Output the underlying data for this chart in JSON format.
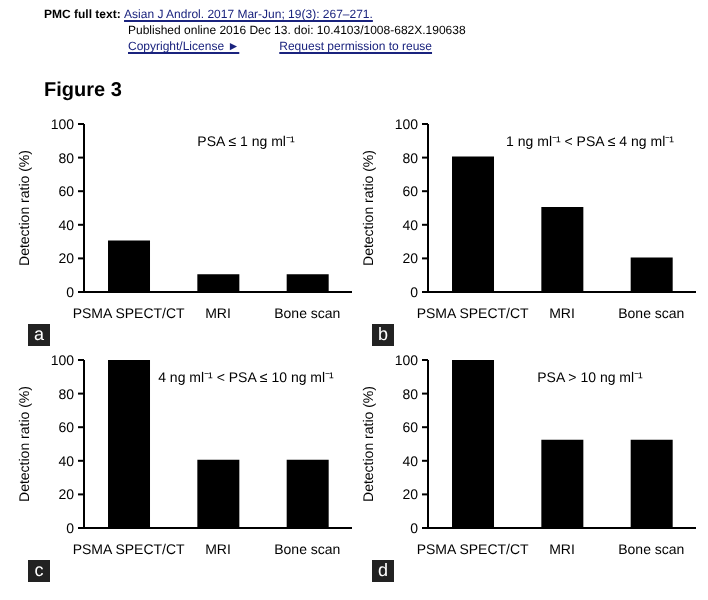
{
  "chart_data": [
    {
      "type": "bar",
      "title": "PSA ≤ 1 ng ml⁻¹",
      "ylabel": "Detection ratio (%)",
      "categories": [
        "PSMA SPECT/CT",
        "MRI",
        "Bone scan"
      ],
      "values": [
        30,
        10,
        10
      ],
      "color": "#000000",
      "ylim": [
        0,
        100
      ],
      "yticks": [
        0,
        20,
        40,
        60,
        80,
        100
      ],
      "annotations": [
        "PMC full text: Asian J Androl. 2017 Mar-Jun; 19(3): 267–271.",
        "Published online 2016 Dec 13. doi: 10.4103/1008-682X.190638",
        "Copyright/License ►",
        "Request permission to reuse",
        "Figure 3",
        "a"
      ]
    },
    {
      "type": "bar",
      "title": "1 ng ml⁻¹ < PSA ≤ 4 ng ml⁻¹",
      "ylabel": "Detection ratio (%)",
      "categories": [
        "PSMA SPECT/CT",
        "MRI",
        "Bone scan"
      ],
      "values": [
        80,
        50,
        20
      ],
      "color": "#000000",
      "ylim": [
        0,
        100
      ],
      "yticks": [
        0,
        20,
        40,
        60,
        80,
        100
      ],
      "annotations": [
        "b"
      ]
    },
    {
      "type": "bar",
      "title": "4 ng ml⁻¹ < PSA ≤ 10 ng ml⁻¹",
      "ylabel": "Detection ratio (%)",
      "categories": [
        "PSMA SPECT/CT",
        "MRI",
        "Bone scan"
      ],
      "values": [
        100,
        40,
        40
      ],
      "color": "#000000",
      "ylim": [
        0,
        100
      ],
      "yticks": [
        0,
        20,
        40,
        60,
        80,
        100
      ],
      "annotations": [
        "c"
      ]
    },
    {
      "type": "bar",
      "title": "PSA > 10 ng ml⁻¹",
      "ylabel": "Detection ratio (%)",
      "categories": [
        "PSMA SPECT/CT",
        "MRI",
        "Bone scan"
      ],
      "values": [
        100,
        52,
        52
      ],
      "color": "#000000",
      "ylim": [
        0,
        100
      ],
      "yticks": [
        0,
        20,
        40,
        60,
        80,
        100
      ],
      "annotations": [
        "d"
      ]
    }
  ]
}
